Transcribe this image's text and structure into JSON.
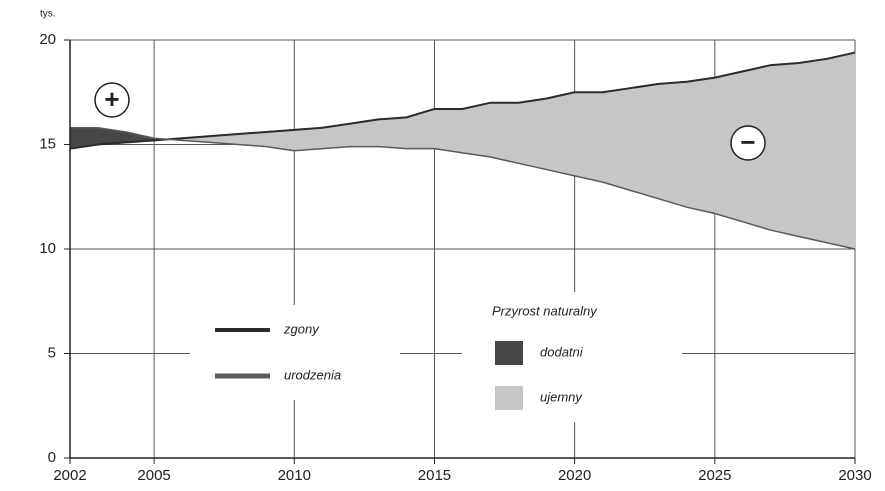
{
  "chart_data": {
    "type": "line",
    "y_label": "tys.",
    "x": [
      2002,
      2003,
      2004,
      2005,
      2006,
      2007,
      2008,
      2009,
      2010,
      2011,
      2012,
      2013,
      2014,
      2015,
      2016,
      2017,
      2018,
      2019,
      2020,
      2021,
      2022,
      2023,
      2024,
      2025,
      2026,
      2027,
      2028,
      2029,
      2030
    ],
    "series": [
      {
        "name": "zgony",
        "color": "#2b2b2b",
        "values": [
          14.8,
          15.0,
          15.1,
          15.2,
          15.3,
          15.4,
          15.5,
          15.6,
          15.7,
          15.8,
          16.0,
          16.2,
          16.3,
          16.7,
          16.7,
          17.0,
          17.0,
          17.2,
          17.5,
          17.5,
          17.7,
          17.9,
          18.0,
          18.2,
          18.5,
          18.8,
          18.9,
          19.1,
          19.4
        ]
      },
      {
        "name": "urodzenia",
        "color": "#5a5a5a",
        "values": [
          15.8,
          15.8,
          15.6,
          15.3,
          15.2,
          15.1,
          15.0,
          14.9,
          14.7,
          14.8,
          14.9,
          14.9,
          14.8,
          14.8,
          14.6,
          14.4,
          14.1,
          13.8,
          13.5,
          13.2,
          12.8,
          12.4,
          12.0,
          11.7,
          11.3,
          10.9,
          10.6,
          10.3,
          10.0
        ]
      }
    ],
    "natural_increase": {
      "title": "Przyrost naturalny",
      "items": [
        {
          "name": "dodatni",
          "color": "#474747"
        },
        {
          "name": "ujemny",
          "color": "#c6c6c6"
        }
      ]
    },
    "annotations": [
      {
        "text": "+"
      },
      {
        "text": "−"
      }
    ],
    "xlim": [
      2002,
      2030
    ],
    "xticks": [
      2002,
      2005,
      2010,
      2015,
      2020,
      2025,
      2030
    ],
    "ylim": [
      0,
      20
    ],
    "yticks": [
      0,
      5,
      10,
      15,
      20
    ],
    "grid": true
  }
}
